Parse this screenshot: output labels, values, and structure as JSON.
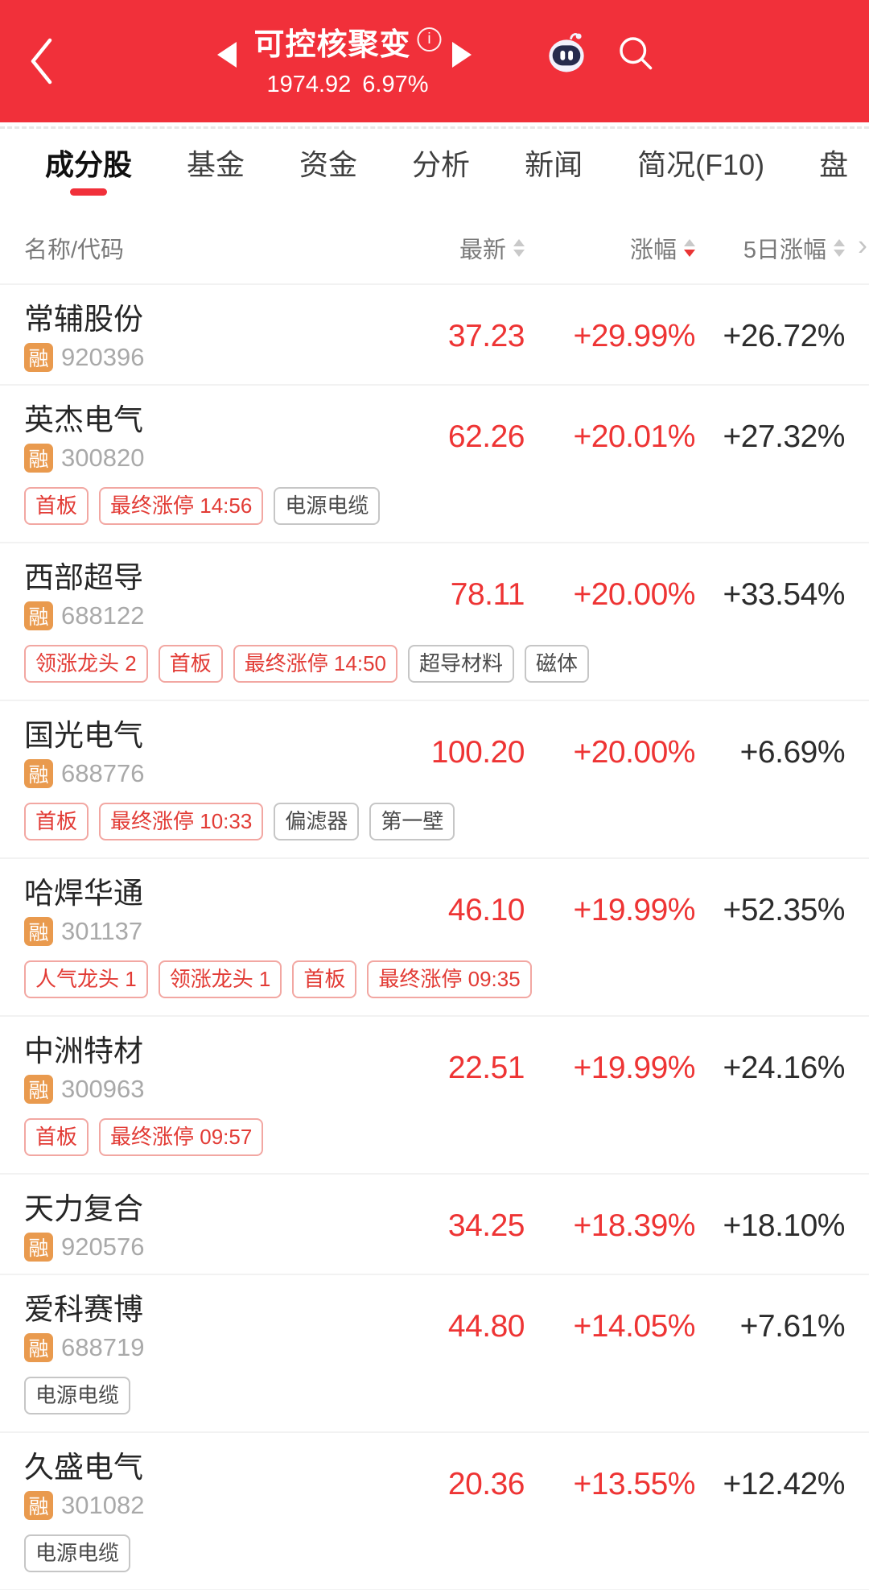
{
  "header": {
    "title": "可控核聚变",
    "index_value": "1974.92",
    "index_change": "6.97%"
  },
  "icons": {
    "info": "i",
    "more_columns": "›"
  },
  "tabs": [
    {
      "label": "成分股",
      "active": true
    },
    {
      "label": "基金",
      "active": false
    },
    {
      "label": "资金",
      "active": false
    },
    {
      "label": "分析",
      "active": false
    },
    {
      "label": "新闻",
      "active": false
    },
    {
      "label": "简况(F10)",
      "active": false
    },
    {
      "label": "盘",
      "active": false
    }
  ],
  "table": {
    "header": {
      "name_col": "名称/代码",
      "price_col": "最新",
      "change_col": "涨幅",
      "change5_col": "5日涨幅",
      "sort": {
        "price": "none",
        "change": "desc",
        "change_5d": "none"
      }
    },
    "margin_badge_label": "融",
    "rows": [
      {
        "name": "常辅股份",
        "code": "920396",
        "price": "37.23",
        "change": "+29.99%",
        "change_5d": "+26.72%",
        "tags": []
      },
      {
        "name": "英杰电气",
        "code": "300820",
        "price": "62.26",
        "change": "+20.01%",
        "change_5d": "+27.32%",
        "tags": [
          {
            "label": "首板",
            "type": "red"
          },
          {
            "label": "最终涨停 14:56",
            "type": "red"
          },
          {
            "label": "电源电缆",
            "type": "gray"
          }
        ]
      },
      {
        "name": "西部超导",
        "code": "688122",
        "price": "78.11",
        "change": "+20.00%",
        "change_5d": "+33.54%",
        "tags": [
          {
            "label": "领涨龙头 2",
            "type": "red"
          },
          {
            "label": "首板",
            "type": "red"
          },
          {
            "label": "最终涨停 14:50",
            "type": "red"
          },
          {
            "label": "超导材料",
            "type": "gray"
          },
          {
            "label": "磁体",
            "type": "gray"
          }
        ]
      },
      {
        "name": "国光电气",
        "code": "688776",
        "price": "100.20",
        "change": "+20.00%",
        "change_5d": "+6.69%",
        "tags": [
          {
            "label": "首板",
            "type": "red"
          },
          {
            "label": "最终涨停 10:33",
            "type": "red"
          },
          {
            "label": "偏滤器",
            "type": "gray"
          },
          {
            "label": "第一壁",
            "type": "gray"
          }
        ]
      },
      {
        "name": "哈焊华通",
        "code": "301137",
        "price": "46.10",
        "change": "+19.99%",
        "change_5d": "+52.35%",
        "tags": [
          {
            "label": "人气龙头 1",
            "type": "red"
          },
          {
            "label": "领涨龙头 1",
            "type": "red"
          },
          {
            "label": "首板",
            "type": "red"
          },
          {
            "label": "最终涨停 09:35",
            "type": "red"
          }
        ]
      },
      {
        "name": "中洲特材",
        "code": "300963",
        "price": "22.51",
        "change": "+19.99%",
        "change_5d": "+24.16%",
        "tags": [
          {
            "label": "首板",
            "type": "red"
          },
          {
            "label": "最终涨停 09:57",
            "type": "red"
          }
        ]
      },
      {
        "name": "天力复合",
        "code": "920576",
        "price": "34.25",
        "change": "+18.39%",
        "change_5d": "+18.10%",
        "tags": []
      },
      {
        "name": "爱科赛博",
        "code": "688719",
        "price": "44.80",
        "change": "+14.05%",
        "change_5d": "+7.61%",
        "tags": [
          {
            "label": "电源电缆",
            "type": "gray"
          }
        ]
      },
      {
        "name": "久盛电气",
        "code": "301082",
        "price": "20.36",
        "change": "+13.55%",
        "change_5d": "+12.42%",
        "tags": [
          {
            "label": "电源电缆",
            "type": "gray"
          }
        ]
      }
    ]
  },
  "colors": {
    "accent_red": "#F1303A",
    "value_red": "#EE3434",
    "badge_orange": "#E99A4E",
    "tag_red": "#E23B35"
  }
}
